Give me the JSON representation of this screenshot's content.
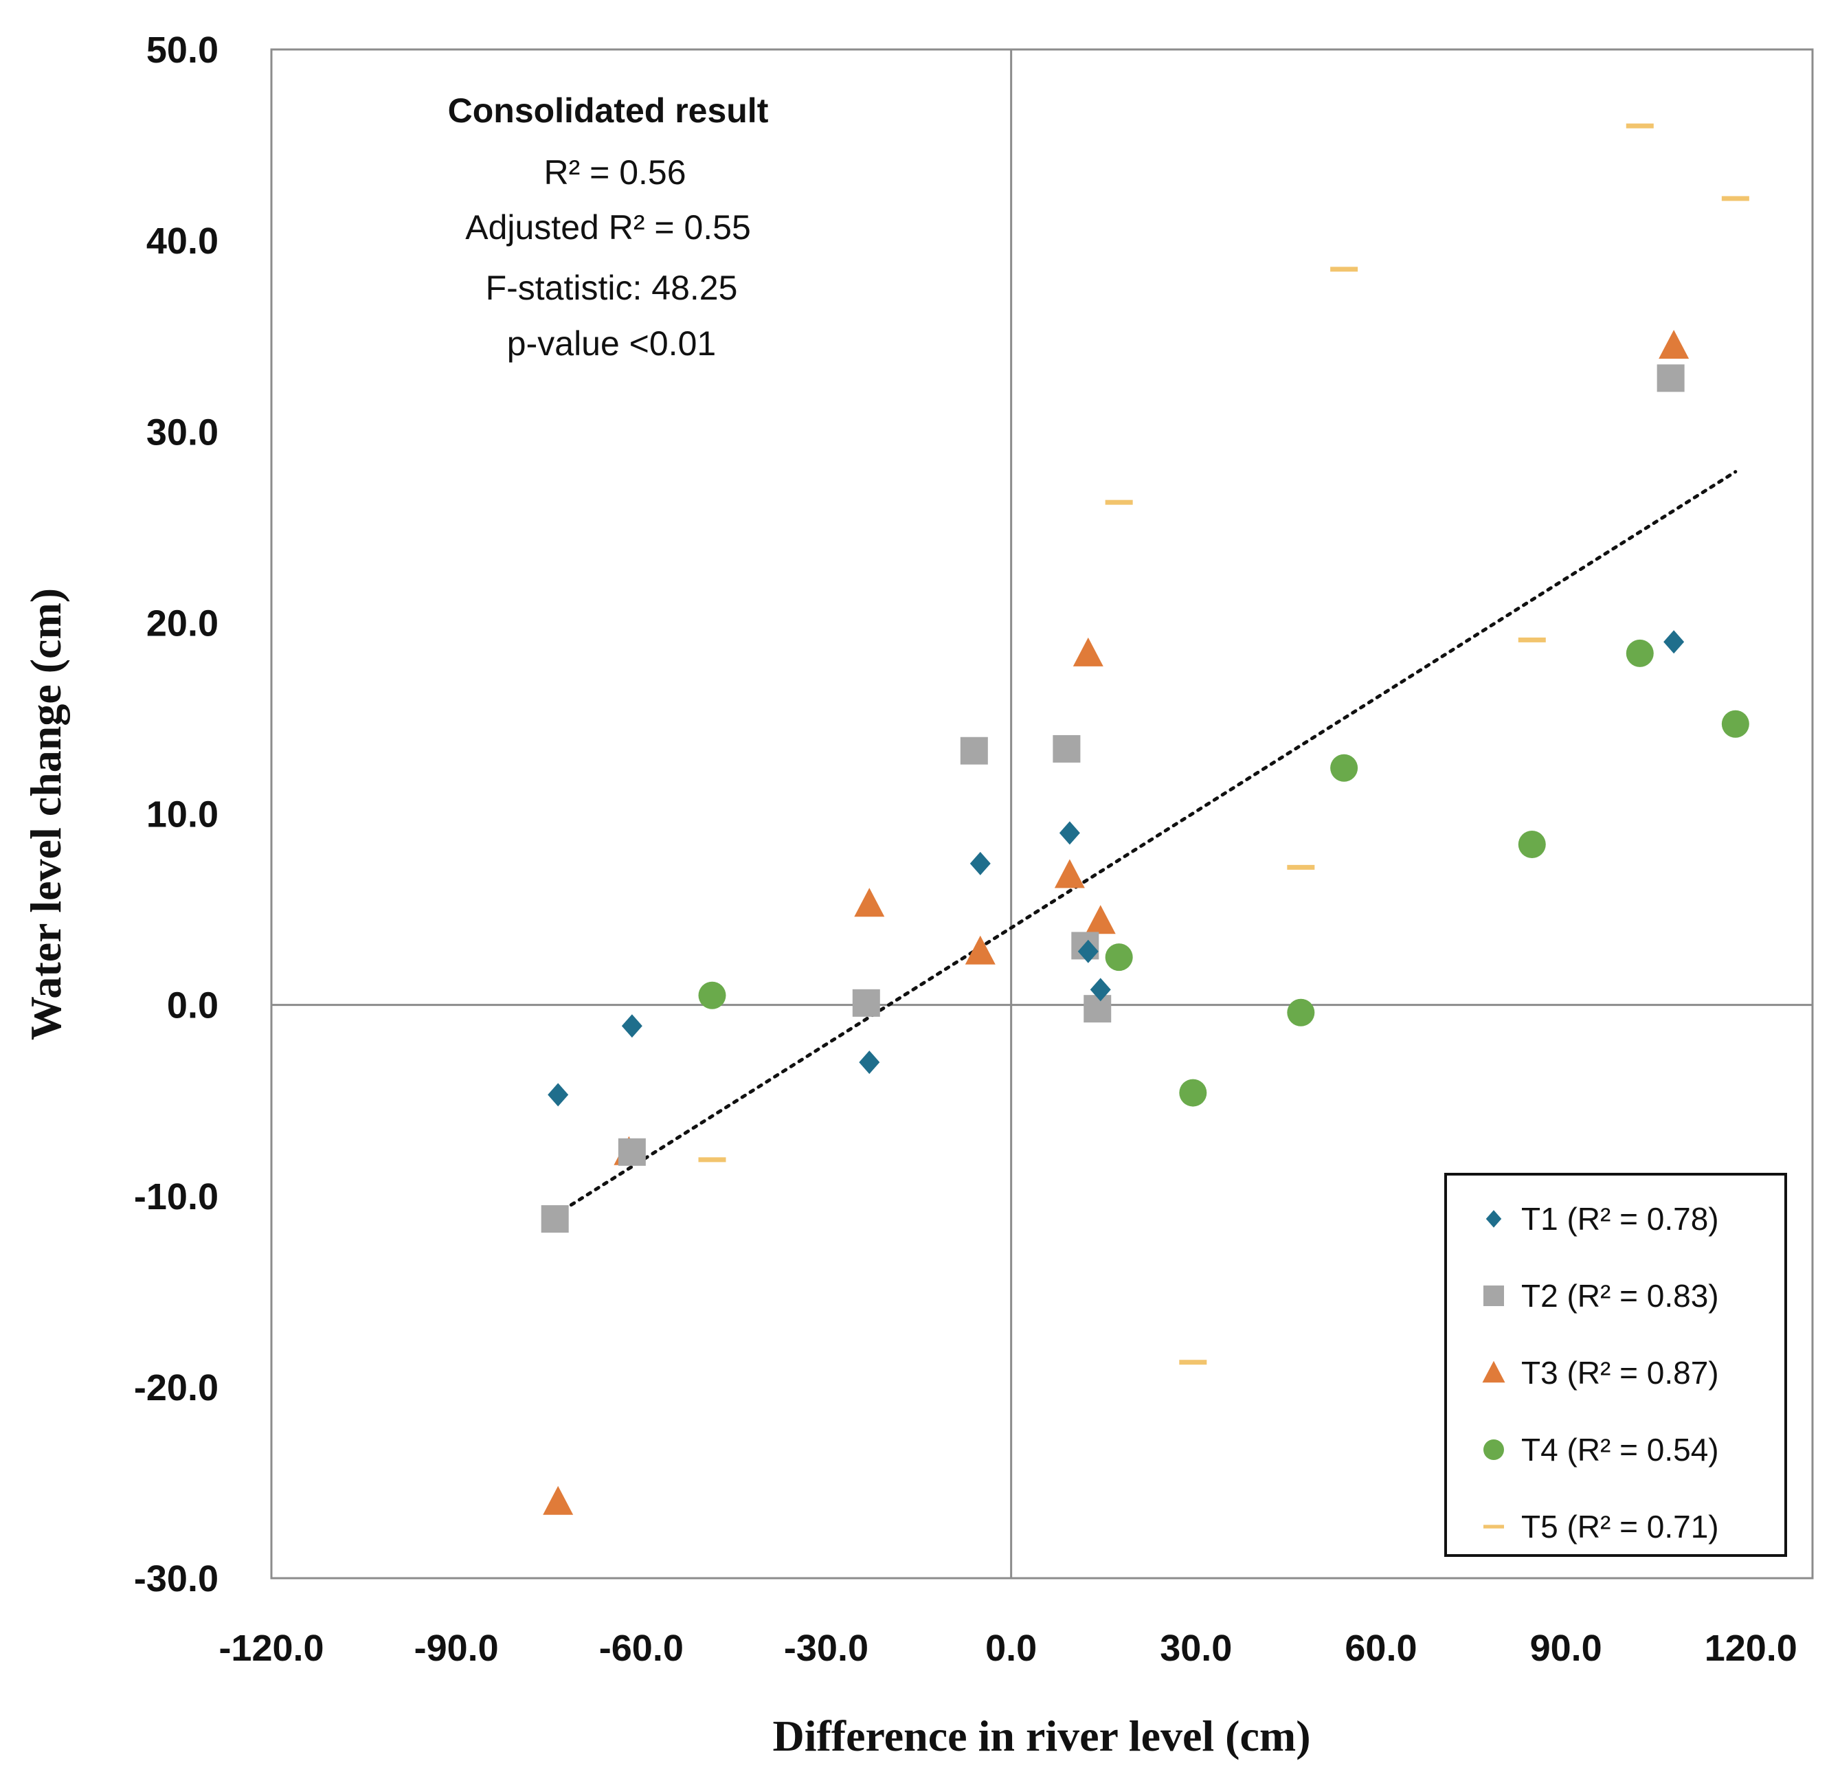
{
  "chart_data": {
    "type": "scatter",
    "xlabel": "Difference in river level (cm)",
    "ylabel": "Water level change (cm)",
    "xlim": [
      -120,
      130
    ],
    "ylim": [
      -30,
      50
    ],
    "x_ticks": [
      "-120.0",
      "-90.0",
      "-60.0",
      "-30.0",
      "0.0",
      "30.0",
      "60.0",
      "90.0",
      "120.0"
    ],
    "y_ticks": [
      "-30.0",
      "-20.0",
      "-10.0",
      "0.0",
      "10.0",
      "20.0",
      "30.0",
      "40.0",
      "50.0"
    ],
    "x_tick_values": [
      -120,
      -90,
      -60,
      -30,
      0,
      30,
      60,
      90,
      120
    ],
    "y_tick_values": [
      -30,
      -20,
      -10,
      0,
      10,
      20,
      30,
      40,
      50
    ],
    "reference_lines": {
      "x": 0,
      "y": 0
    },
    "annotation": {
      "title": "Consolidated result",
      "r2": "R² = 0.56",
      "adj_r2": "Adjusted R² = 0.55",
      "f_stat": "F-statistic: 48.25",
      "p_value": "p-value <0.01"
    },
    "legend_position": "bottom-right",
    "series": [
      {
        "name": "T1",
        "label": "T1 (R² = 0.78)",
        "marker": "diamond",
        "color": "#1F6E8C",
        "points": [
          [
            -73.5,
            -4.7
          ],
          [
            -61.5,
            -1.1
          ],
          [
            -23,
            -3.0
          ],
          [
            -5,
            7.4
          ],
          [
            9.5,
            9.0
          ],
          [
            12.5,
            2.8
          ],
          [
            14.5,
            0.8
          ],
          [
            107.5,
            19.0
          ]
        ]
      },
      {
        "name": "T2",
        "label": "T2 (R² = 0.83)",
        "marker": "square",
        "color": "#A6A6A6",
        "points": [
          [
            -74,
            -11.2
          ],
          [
            -61.5,
            -7.7
          ],
          [
            -23.5,
            0.1
          ],
          [
            -6,
            13.3
          ],
          [
            9,
            13.4
          ],
          [
            12,
            3.1
          ],
          [
            14,
            -0.2
          ],
          [
            107,
            32.8
          ]
        ]
      },
      {
        "name": "T3",
        "label": "T3 (R² = 0.87)",
        "marker": "triangle",
        "color": "#E07B39",
        "points": [
          [
            -73.5,
            -26.0
          ],
          [
            -62,
            -7.7
          ],
          [
            -23,
            5.3
          ],
          [
            -5,
            2.8
          ],
          [
            9.5,
            6.8
          ],
          [
            12.5,
            18.4
          ],
          [
            14.5,
            4.4
          ],
          [
            107.5,
            34.5
          ]
        ]
      },
      {
        "name": "T4",
        "label": "T4 (R² = 0.54)",
        "marker": "circle",
        "color": "#6AAA4B",
        "points": [
          [
            -48.5,
            0.5
          ],
          [
            17.5,
            2.5
          ],
          [
            29.5,
            -4.6
          ],
          [
            47,
            -0.4
          ],
          [
            54,
            12.4
          ],
          [
            84.5,
            8.4
          ],
          [
            102,
            18.4
          ],
          [
            117.5,
            14.7
          ]
        ]
      },
      {
        "name": "T5",
        "label": "T5 (R² = 0.71)",
        "marker": "dash",
        "color": "#F2C46D",
        "points": [
          [
            -48.5,
            -8.1
          ],
          [
            17.5,
            26.3
          ],
          [
            29.5,
            -18.7
          ],
          [
            47,
            7.2
          ],
          [
            54,
            38.5
          ],
          [
            84.5,
            19.1
          ],
          [
            102,
            46.0
          ],
          [
            117.5,
            42.2
          ]
        ]
      }
    ],
    "trendline": {
      "style": "dotted",
      "color": "#111111",
      "x": [
        -74,
        117.5
      ],
      "y": [
        -11.0,
        27.9
      ]
    }
  }
}
